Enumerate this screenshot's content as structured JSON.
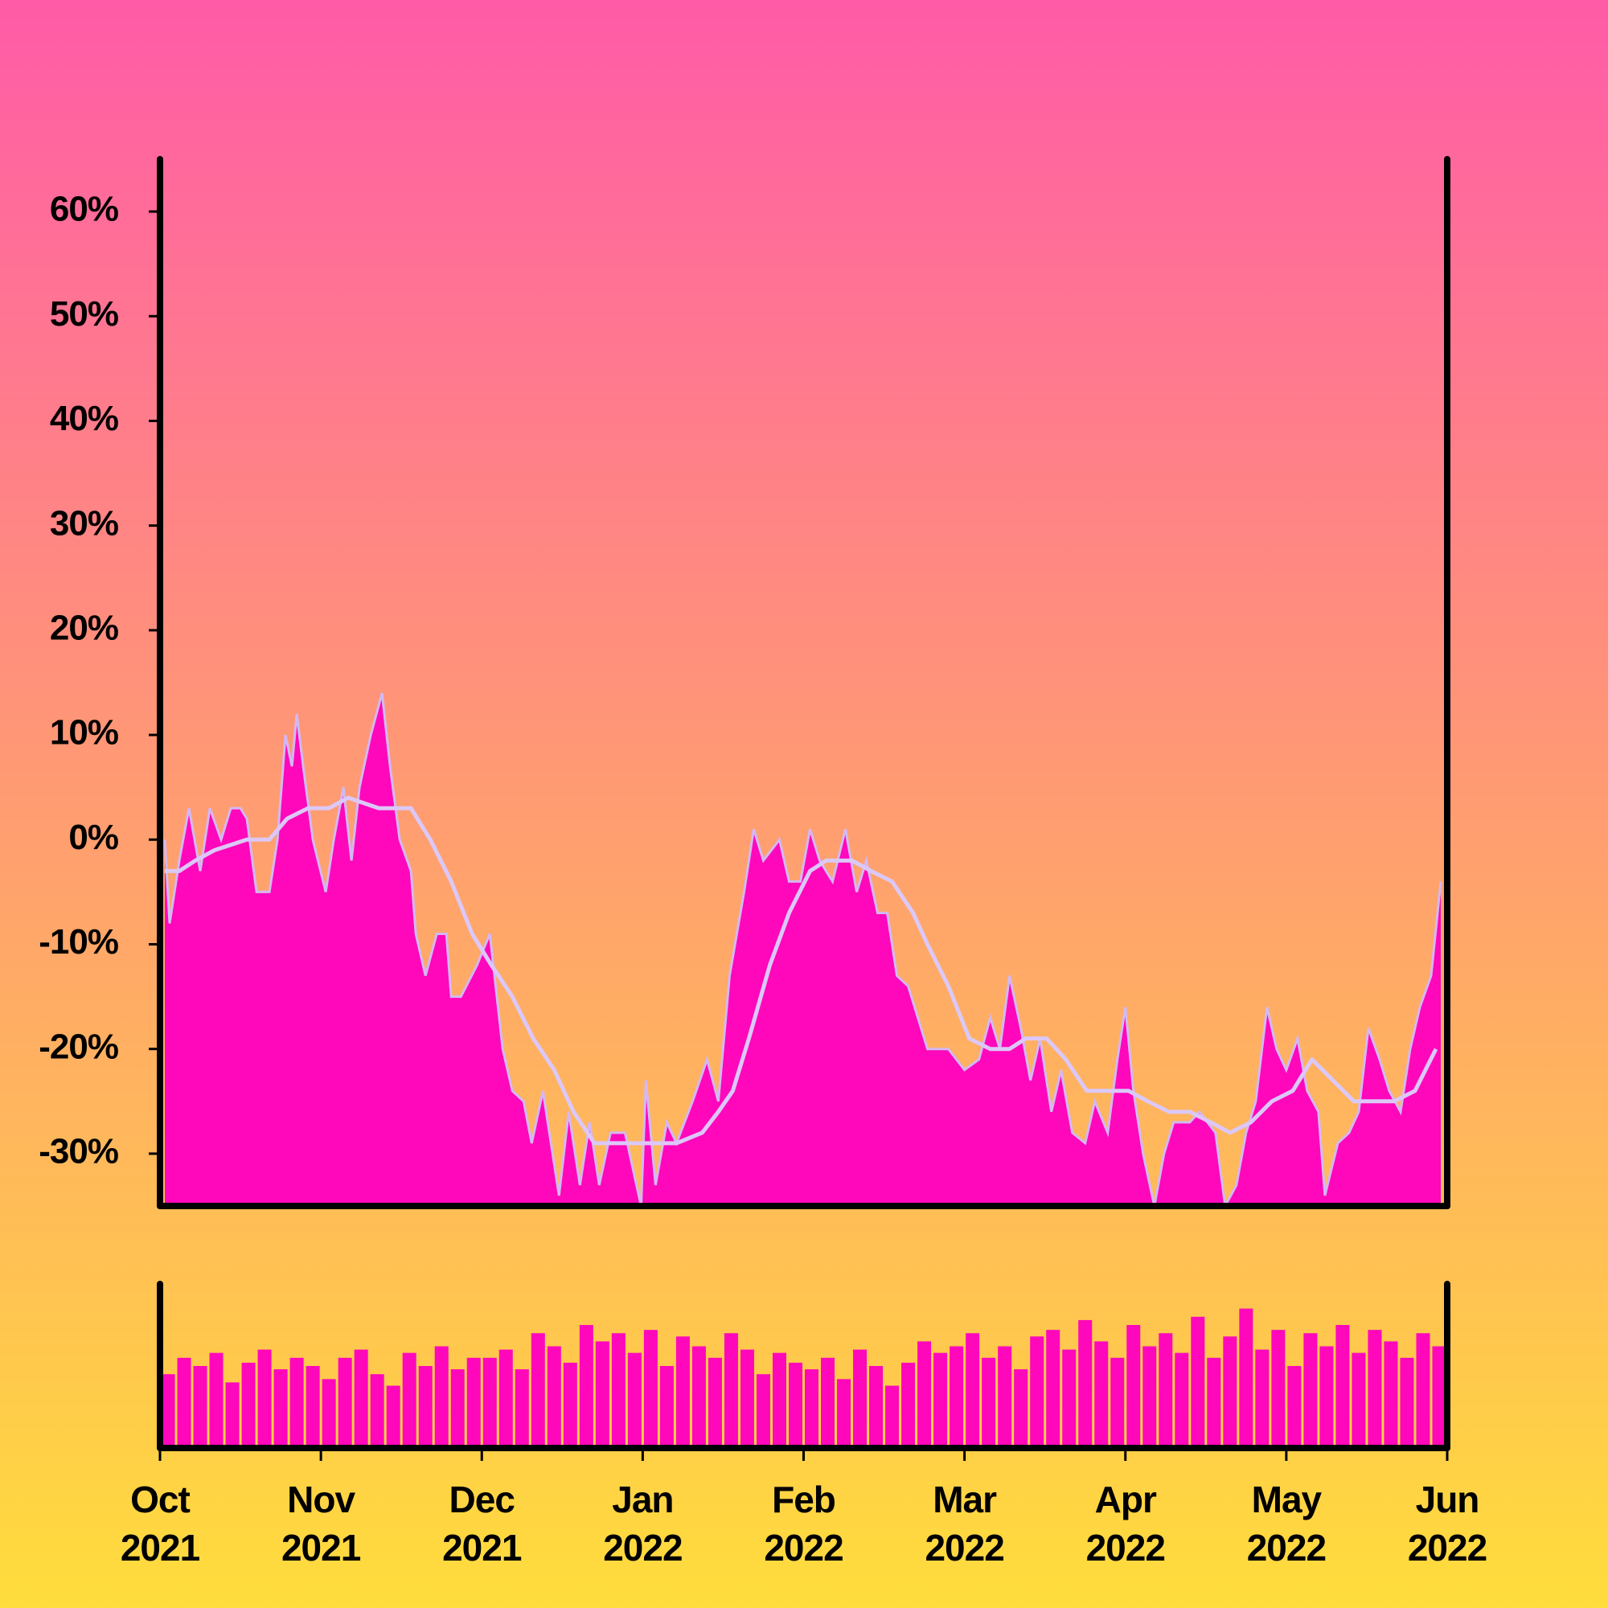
{
  "chart_data": [
    {
      "type": "area",
      "xlim": [
        0,
        8
      ],
      "ylim": [
        -35,
        65
      ],
      "yticks": [
        {
          "value": -30,
          "label": "-30%"
        },
        {
          "value": -20,
          "label": "-20%"
        },
        {
          "value": -10,
          "label": "-10%"
        },
        {
          "value": 0,
          "label": "0%"
        },
        {
          "value": 10,
          "label": "10%"
        },
        {
          "value": 20,
          "label": "20%"
        },
        {
          "value": 30,
          "label": "30%"
        },
        {
          "value": 40,
          "label": "40%"
        },
        {
          "value": 50,
          "label": "50%"
        },
        {
          "value": 60,
          "label": "60%"
        }
      ],
      "grid": false,
      "series": [
        {
          "color": "#ff07bb",
          "line_color": "#d4b8f2",
          "x": [
            0.03,
            0.06,
            0.12,
            0.18,
            0.25,
            0.31,
            0.38,
            0.44,
            0.5,
            0.54,
            0.6,
            0.68,
            0.73,
            0.78,
            0.82,
            0.85,
            0.89,
            0.95,
            1.03,
            1.08,
            1.14,
            1.19,
            1.24,
            1.31,
            1.38,
            1.43,
            1.49,
            1.56,
            1.59,
            1.65,
            1.72,
            1.78,
            1.81,
            1.87,
            1.97,
            2.05,
            2.13,
            2.19,
            2.26,
            2.31,
            2.38,
            2.48,
            2.54,
            2.61,
            2.67,
            2.73,
            2.8,
            2.89,
            2.99,
            3.02,
            3.08,
            3.15,
            3.21,
            3.31,
            3.4,
            3.47,
            3.54,
            3.63,
            3.69,
            3.75,
            3.85,
            3.91,
            3.98,
            4.04,
            4.1,
            4.18,
            4.26,
            4.33,
            4.39,
            4.46,
            4.52,
            4.58,
            4.65,
            4.71,
            4.77,
            4.84,
            4.9,
            5.0,
            5.09,
            5.16,
            5.22,
            5.28,
            5.35,
            5.41,
            5.47,
            5.54,
            5.6,
            5.67,
            5.75,
            5.81,
            5.89,
            5.95,
            6.0,
            6.05,
            6.11,
            6.18,
            6.24,
            6.3,
            6.4,
            6.46,
            6.56,
            6.62,
            6.69,
            6.75,
            6.81,
            6.88,
            6.94,
            7.0,
            7.07,
            7.13,
            7.2,
            7.24,
            7.32,
            7.39,
            7.45,
            7.51,
            7.58,
            7.64,
            7.71,
            7.77,
            7.83,
            7.9,
            7.96
          ],
          "values": [
            0,
            -8,
            -2,
            3,
            -3,
            3,
            0,
            3,
            3,
            2,
            -5,
            -5,
            0,
            10,
            7,
            12,
            7,
            0,
            -5,
            0,
            5,
            -2,
            5,
            10,
            14,
            7,
            0,
            -3,
            -9,
            -13,
            -9,
            -9,
            -15,
            -15,
            -12,
            -9,
            -20,
            -24,
            -25,
            -29,
            -24,
            -34,
            -26,
            -33,
            -27,
            -33,
            -28,
            -28,
            -35,
            -23,
            -33,
            -27,
            -29,
            -25,
            -21,
            -25,
            -13,
            -5,
            1,
            -2,
            0,
            -4,
            -4,
            1,
            -2,
            -4,
            1,
            -5,
            -2,
            -7,
            -7,
            -13,
            -14,
            -17,
            -20,
            -20,
            -20,
            -22,
            -21,
            -17,
            -20,
            -13,
            -18,
            -23,
            -19,
            -26,
            -22,
            -28,
            -29,
            -25,
            -28,
            -21,
            -16,
            -24,
            -30,
            -35,
            -30,
            -27,
            -27,
            -26,
            -28,
            -35,
            -33,
            -28,
            -25,
            -16,
            -20,
            -22,
            -19,
            -24,
            -26,
            -34,
            -29,
            -28,
            -26,
            -18,
            -21,
            -24,
            -26,
            -20,
            -16,
            -13,
            -4
          ]
        },
        {
          "type": "line",
          "color": "#dcc8f8",
          "x": [
            0.03,
            0.12,
            0.22,
            0.34,
            0.54,
            0.68,
            0.79,
            0.92,
            1.05,
            1.17,
            1.36,
            1.56,
            1.68,
            1.81,
            1.94,
            2.06,
            2.19,
            2.32,
            2.45,
            2.57,
            2.7,
            2.89,
            3.02,
            3.21,
            3.37,
            3.47,
            3.56,
            3.66,
            3.79,
            3.91,
            4.04,
            4.14,
            4.3,
            4.42,
            4.55,
            4.68,
            4.77,
            4.9,
            5.03,
            5.16,
            5.28,
            5.38,
            5.51,
            5.63,
            5.76,
            5.89,
            6.02,
            6.14,
            6.27,
            6.4,
            6.53,
            6.65,
            6.78,
            6.91,
            7.04,
            7.16,
            7.29,
            7.42,
            7.55,
            7.67,
            7.8,
            7.93
          ],
          "values": [
            -3,
            -3,
            -2,
            -1,
            0,
            0,
            2,
            3,
            3,
            4,
            3,
            3,
            0,
            -4,
            -9,
            -12,
            -15,
            -19,
            -22,
            -26,
            -29,
            -29,
            -29,
            -29,
            -28,
            -26,
            -24,
            -19,
            -12,
            -7,
            -3,
            -2,
            -2,
            -3,
            -4,
            -7,
            -10,
            -14,
            -19,
            -20,
            -20,
            -19,
            -19,
            -21,
            -24,
            -24,
            -24,
            -25,
            -26,
            -26,
            -27,
            -28,
            -27,
            -25,
            -24,
            -21,
            -23,
            -25,
            -25,
            -25,
            -24,
            -20
          ]
        }
      ]
    },
    {
      "type": "bar",
      "color": "#ff07bb",
      "xlim": [
        0,
        8
      ],
      "ylim": [
        0,
        100
      ],
      "xticks": [
        {
          "value": 0,
          "label": "Oct 2021"
        },
        {
          "value": 1,
          "label": "Nov 2021"
        },
        {
          "value": 2,
          "label": "Dec 2021"
        },
        {
          "value": 3,
          "label": "Jan 2022"
        },
        {
          "value": 4,
          "label": "Feb 2022"
        },
        {
          "value": 5,
          "label": "Mar 2022"
        },
        {
          "value": 6,
          "label": "Apr 2022"
        },
        {
          "value": 7,
          "label": "May 2022"
        },
        {
          "value": 8,
          "label": "Jun 2022"
        }
      ],
      "x": [
        0.05,
        0.15,
        0.25,
        0.35,
        0.45,
        0.55,
        0.65,
        0.75,
        0.85,
        0.95,
        1.05,
        1.15,
        1.25,
        1.35,
        1.45,
        1.55,
        1.65,
        1.75,
        1.85,
        1.95,
        2.05,
        2.15,
        2.25,
        2.35,
        2.45,
        2.55,
        2.65,
        2.75,
        2.85,
        2.95,
        3.05,
        3.15,
        3.25,
        3.35,
        3.45,
        3.55,
        3.65,
        3.75,
        3.85,
        3.95,
        4.05,
        4.15,
        4.25,
        4.35,
        4.45,
        4.55,
        4.65,
        4.75,
        4.85,
        4.95,
        5.05,
        5.15,
        5.25,
        5.35,
        5.45,
        5.55,
        5.65,
        5.75,
        5.85,
        5.95,
        6.05,
        6.15,
        6.25,
        6.35,
        6.45,
        6.55,
        6.65,
        6.75,
        6.85,
        6.95,
        7.05,
        7.15,
        7.25,
        7.35,
        7.45,
        7.55,
        7.65,
        7.75,
        7.85,
        7.95
      ],
      "values": [
        45,
        55,
        50,
        58,
        40,
        52,
        60,
        48,
        55,
        50,
        42,
        55,
        60,
        45,
        38,
        58,
        50,
        62,
        48,
        55,
        55,
        60,
        48,
        70,
        62,
        52,
        75,
        65,
        70,
        58,
        72,
        50,
        68,
        62,
        55,
        70,
        60,
        45,
        58,
        52,
        48,
        55,
        42,
        60,
        50,
        38,
        52,
        65,
        58,
        62,
        70,
        55,
        62,
        48,
        68,
        72,
        60,
        78,
        65,
        55,
        75,
        62,
        70,
        58,
        80,
        55,
        68,
        85,
        60,
        72,
        50,
        70,
        62,
        75,
        58,
        72,
        65,
        55,
        70,
        62
      ]
    }
  ]
}
